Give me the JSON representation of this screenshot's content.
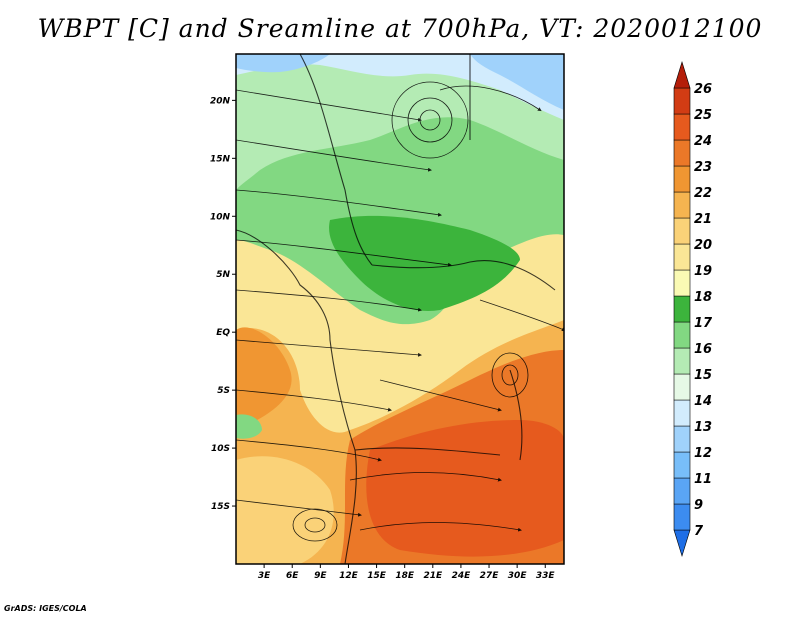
{
  "title": "WBPT [C] and Sreamline at 700hPa, VT: 2020012100",
  "footer": "GrADS: IGES/COLA",
  "map": {
    "lon_range": [
      0,
      35
    ],
    "lat_range": [
      -20,
      24
    ],
    "x_ticks": [
      "3E",
      "6E",
      "9E",
      "12E",
      "15E",
      "18E",
      "21E",
      "24E",
      "27E",
      "30E",
      "33E"
    ],
    "x_tick_values": [
      3,
      6,
      9,
      12,
      15,
      18,
      21,
      24,
      27,
      30,
      33
    ],
    "y_ticks": [
      "20N",
      "15N",
      "10N",
      "5N",
      "EQ",
      "5S",
      "10S",
      "15S"
    ],
    "y_tick_values": [
      20,
      15,
      10,
      5,
      0,
      -5,
      -10,
      -15
    ]
  },
  "colorbar": {
    "labels": [
      "7",
      "9",
      "11",
      "12",
      "13",
      "14",
      "15",
      "16",
      "17",
      "18",
      "19",
      "20",
      "21",
      "22",
      "23",
      "24",
      "25",
      "26"
    ],
    "colors": [
      "#1e6ee6",
      "#3c8cf0",
      "#5aa5f5",
      "#78bef9",
      "#a0d2fb",
      "#d2ecfd",
      "#e6f9e6",
      "#b4ebb4",
      "#82d882",
      "#3cb43c",
      "#fafab4",
      "#fae696",
      "#fad278",
      "#f5b450",
      "#f09632",
      "#eb7828",
      "#e65a1e",
      "#d23c14",
      "#b41e0a"
    ]
  }
}
